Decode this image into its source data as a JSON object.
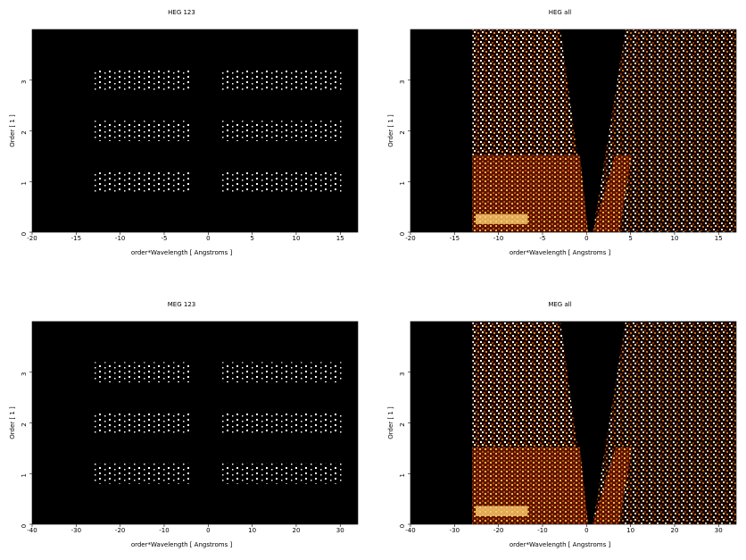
{
  "chart_data": [
    {
      "type": "heatmap",
      "title": "HEG 123",
      "xlabel": "order*Wavelength [ Angstroms ]",
      "ylabel": "Order [ 1 ]",
      "xlim": [
        -20,
        17
      ],
      "ylim": [
        0,
        4
      ],
      "xticks": [
        -20,
        -15,
        -10,
        -5,
        0,
        5,
        10,
        15
      ],
      "yticks": [
        0,
        1,
        2,
        3
      ]
    },
    {
      "type": "heatmap",
      "title": "HEG all",
      "xlabel": "order*Wavelength [ Angstroms ]",
      "ylabel": "Order [ 1 ]",
      "xlim": [
        -20,
        17
      ],
      "ylim": [
        0,
        4
      ],
      "xticks": [
        -20,
        -15,
        -10,
        -5,
        0,
        5,
        10,
        15
      ],
      "yticks": [
        0,
        1,
        2,
        3
      ]
    },
    {
      "type": "heatmap",
      "title": "MEG 123",
      "xlabel": "order*Wavelength [ Angstroms ]",
      "ylabel": "Order [ 1 ]",
      "xlim": [
        -40,
        34
      ],
      "ylim": [
        0,
        4
      ],
      "xticks": [
        -40,
        -30,
        -20,
        -10,
        0,
        10,
        20,
        30
      ],
      "yticks": [
        0,
        1,
        2,
        3
      ]
    },
    {
      "type": "heatmap",
      "title": "MEG all",
      "xlabel": "order*Wavelength [ Angstroms ]",
      "ylabel": "Order [ 1 ]",
      "xlim": [
        -40,
        34
      ],
      "ylim": [
        0,
        4
      ],
      "xticks": [
        -40,
        -30,
        -20,
        -10,
        0,
        10,
        20,
        30
      ],
      "yticks": [
        0,
        1,
        2,
        3
      ]
    }
  ]
}
